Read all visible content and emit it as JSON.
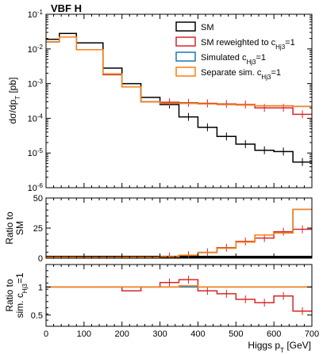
{
  "chart_data": {
    "type": "line",
    "title": "VBF H",
    "xlabel": "Higgs p_T [GeV]",
    "bin_edges": [
      0,
      35,
      80,
      150,
      200,
      250,
      300,
      350,
      400,
      450,
      500,
      550,
      600,
      650,
      700
    ],
    "xlim": [
      0,
      700
    ],
    "xticks": [
      "0",
      "100",
      "200",
      "300",
      "400",
      "500",
      "600",
      "700"
    ],
    "panels": [
      {
        "name": "main",
        "ylabel": "dσ/dp_T [pb]",
        "yscale": "log",
        "ylim": [
          1e-06,
          0.1
        ],
        "yticks": [
          {
            "exp": "-6"
          },
          {
            "exp": "-5"
          },
          {
            "exp": "-4"
          },
          {
            "exp": "-3"
          },
          {
            "exp": "-2"
          },
          {
            "exp": "-1"
          }
        ],
        "series": [
          {
            "name": "SM",
            "color": "#000000",
            "values": [
              0.019,
              0.028,
              0.015,
              0.0028,
              0.001,
              0.0004,
              0.00025,
              0.00011,
              5.5e-05,
              3e-05,
              1.8e-05,
              1.2e-05,
              1.1e-05,
              5.5e-06
            ]
          },
          {
            "name": "SM reweighted to c_Hj3=1",
            "color": "#d62728",
            "values": [
              0.016,
              0.022,
              0.0095,
              0.0018,
              0.0008,
              0.0003,
              0.00029,
              0.00028,
              0.00027,
              0.00026,
              0.00025,
              0.0002,
              0.0002,
              0.00013
            ]
          },
          {
            "name": "Simulated c_Hj3=1",
            "color": "#1f77b4",
            "values": [
              0.016,
              0.022,
              0.0095,
              0.0019,
              0.0008,
              0.0003,
              0.00027,
              0.00027,
              0.00026,
              0.00025,
              0.00024,
              0.00023,
              0.00023,
              0.00022
            ]
          },
          {
            "name": "Separate sim. c_Hj3=1",
            "color": "#ff7f0e",
            "values": [
              0.016,
              0.022,
              0.0095,
              0.0019,
              0.0008,
              0.0003,
              0.00027,
              0.00027,
              0.00026,
              0.00025,
              0.00024,
              0.00023,
              0.00023,
              0.00022
            ]
          }
        ]
      },
      {
        "name": "ratio-to-sm",
        "ylabel": "Ratio to SM",
        "ylim": [
          0,
          50
        ],
        "yticks": [
          "0",
          "25",
          "50"
        ],
        "series": [
          {
            "name": "SM",
            "color": "#000000",
            "values": [
              1,
              1,
              1,
              1,
              1,
              1,
              1,
              1,
              1,
              1,
              1,
              1,
              1,
              1
            ]
          },
          {
            "name": "SM reweighted to c_Hj3=1",
            "color": "#d62728",
            "values": [
              0.84,
              0.79,
              0.63,
              0.64,
              0.8,
              0.75,
              1.2,
              2.5,
              4.9,
              8.7,
              13.9,
              16.7,
              22.0,
              24.0
            ]
          },
          {
            "name": "Simulated c_Hj3=1",
            "color": "#1f77b4",
            "values": [
              0.84,
              0.79,
              0.63,
              0.68,
              0.8,
              0.75,
              1.1,
              2.5,
              4.7,
              8.3,
              13.3,
              19.2,
              21.0,
              40.5
            ]
          },
          {
            "name": "Separate sim. c_Hj3=1",
            "color": "#ff7f0e",
            "values": [
              0.84,
              0.79,
              0.63,
              0.68,
              0.8,
              0.75,
              1.1,
              2.5,
              4.7,
              8.3,
              13.3,
              19.2,
              21.0,
              40.5
            ]
          }
        ]
      },
      {
        "name": "ratio-to-sim",
        "ylabel": "Ratio to sim. c_Hj3=1",
        "ylim": [
          0.3,
          1.4
        ],
        "yticks": [
          "0.5",
          "1"
        ],
        "series": [
          {
            "name": "SM reweighted to c_Hj3=1",
            "color": "#d62728",
            "values": [
              1.0,
              1.0,
              1.0,
              1.0,
              0.93,
              1.0,
              1.08,
              1.13,
              0.93,
              0.88,
              0.78,
              0.72,
              0.84,
              0.57
            ]
          },
          {
            "name": "Simulated c_Hj3=1",
            "color": "#1f77b4",
            "values": [
              1,
              1,
              1,
              1,
              1,
              1,
              1,
              1,
              1,
              1,
              1,
              1,
              1,
              1
            ]
          },
          {
            "name": "Separate sim. c_Hj3=1",
            "color": "#ff7f0e",
            "values": [
              1.0,
              1.0,
              1.0,
              1.0,
              1.0,
              1.0,
              1.0,
              1.02,
              1.0,
              1.0,
              1.0,
              1.0,
              1.0,
              1.0
            ]
          }
        ]
      }
    ],
    "legend": {
      "placement": "top-right",
      "entries": [
        {
          "pre": "SM",
          "sub": "",
          "post": "",
          "color": "#000000"
        },
        {
          "pre": "SM reweighted to c",
          "sub": "Hj3",
          "post": "=1",
          "color": "#d62728"
        },
        {
          "pre": "Simulated c",
          "sub": "Hj3",
          "post": "=1",
          "color": "#1f77b4"
        },
        {
          "pre": "Separate sim. c",
          "sub": "Hj3",
          "post": "=1",
          "color": "#ff7f0e"
        }
      ]
    }
  }
}
